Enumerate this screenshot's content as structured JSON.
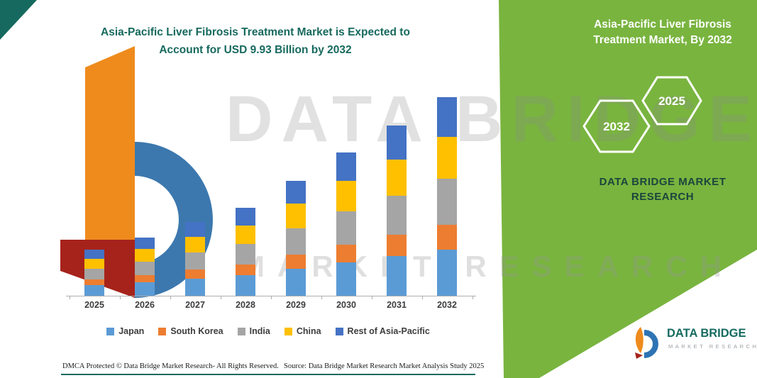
{
  "header": {
    "title_line1": "Asia-Pacific Liver Fibrosis Treatment Market is Expected to",
    "title_line2": "Account for USD 9.93 Billion by 2032"
  },
  "watermark": {
    "line1": "DATA BRIDGE",
    "line2": "MARKET RESEARCH"
  },
  "side_panel": {
    "title_line1": "Asia-Pacific Liver Fibrosis",
    "title_line2": "Treatment Market, By 2032",
    "hexagon_back_year": "2032",
    "hexagon_front_year": "2025",
    "brand_line1": "DATA BRIDGE MARKET",
    "brand_line2": "RESEARCH",
    "accent_green": "#79b43f"
  },
  "chart_data": {
    "type": "bar",
    "stacked": true,
    "title": "Asia-Pacific Liver Fibrosis Treatment Market is Expected to Account for USD 9.93 Billion by 2032",
    "unit": "USD Billion",
    "categories": [
      "2025",
      "2026",
      "2027",
      "2028",
      "2029",
      "2030",
      "2031",
      "2032"
    ],
    "series": [
      {
        "name": "Japan",
        "color": "#5B9BD5",
        "values": [
          0.53,
          0.67,
          0.85,
          1.02,
          1.33,
          1.66,
          1.97,
          2.3
        ]
      },
      {
        "name": "South Korea",
        "color": "#ED7D31",
        "values": [
          0.29,
          0.37,
          0.46,
          0.55,
          0.72,
          0.9,
          1.07,
          1.25
        ]
      },
      {
        "name": "India",
        "color": "#A5A5A5",
        "values": [
          0.53,
          0.67,
          0.85,
          1.02,
          1.33,
          1.66,
          1.97,
          2.3
        ]
      },
      {
        "name": "China",
        "color": "#FFC000",
        "values": [
          0.49,
          0.62,
          0.78,
          0.93,
          1.22,
          1.51,
          1.8,
          2.1
        ]
      },
      {
        "name": "Rest of Asia-Pacific",
        "color": "#4472C4",
        "values": [
          0.46,
          0.58,
          0.74,
          0.88,
          1.15,
          1.43,
          1.7,
          1.98
        ]
      }
    ],
    "totals": [
      2.3,
      2.91,
      3.68,
      4.4,
      5.75,
      7.16,
      8.51,
      9.93
    ],
    "ylim": [
      0,
      10
    ],
    "grid": false,
    "legend_position": "bottom"
  },
  "footer": {
    "dmca": "DMCA Protected © Data Bridge Market Research-  All Rights Reserved.",
    "source": "Source: Data Bridge Market Research  Market Analysis Study 2025"
  },
  "logo": {
    "name": "DATA BRIDGE",
    "tagline": "MARKET RESEARCH"
  }
}
